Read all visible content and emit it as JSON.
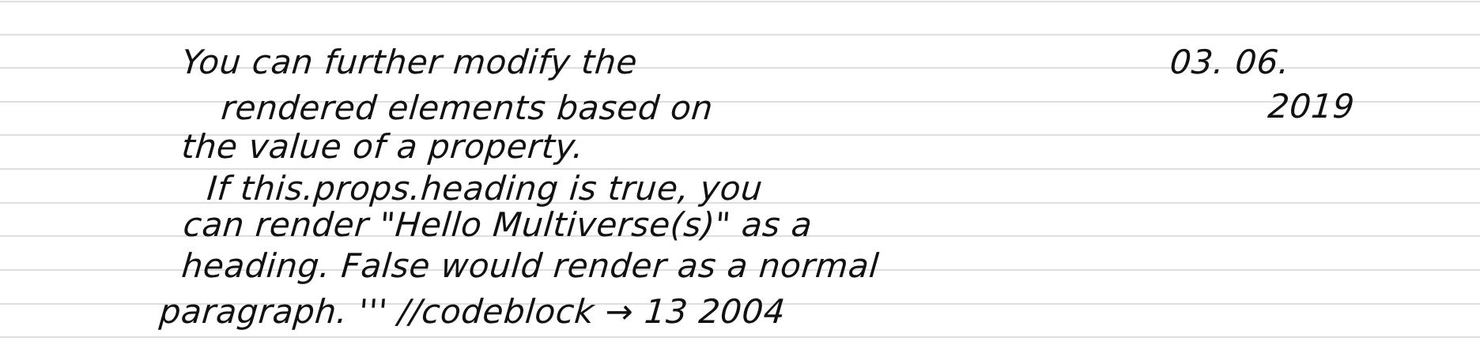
{
  "note": {
    "lines": [
      "You can further modify the",
      "rendered elements based on",
      "the value of a property.",
      "If this.props.heading is true, you",
      "can render \"Hello Multiverse(s)\" as a",
      "heading. False would render as a normal",
      "paragraph. ''' //codeblock → 13 2004"
    ],
    "right_marks": [
      "03. 06.",
      "2019"
    ]
  }
}
